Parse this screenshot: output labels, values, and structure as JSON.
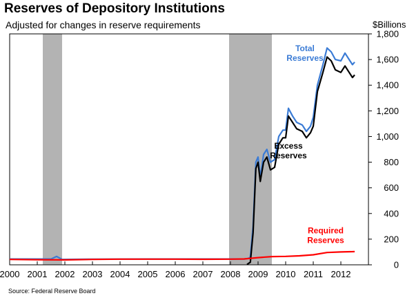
{
  "header": {
    "title": "Reserves of Depository Institutions",
    "subtitle": "Adjusted for changes in reserve requirements",
    "unit_label": "$Billions"
  },
  "footer": {
    "source": "Source:  Federal Reserve Board"
  },
  "chart_data": {
    "type": "line",
    "title": "Reserves of Depository Institutions",
    "subtitle": "Adjusted for changes in reserve requirements",
    "xlabel": "",
    "ylabel": "$Billions",
    "xlim": [
      2000,
      2013
    ],
    "ylim": [
      0,
      1800
    ],
    "x_ticks": [
      2000,
      2001,
      2002,
      2003,
      2004,
      2005,
      2006,
      2007,
      2008,
      2009,
      2010,
      2011,
      2012
    ],
    "x_tick_labels": [
      "2000",
      "2001",
      "2002",
      "2003",
      "2004",
      "2005",
      "2006",
      "2007",
      "2008",
      "2009",
      "2010",
      "2011",
      "2012"
    ],
    "y_ticks": [
      0,
      200,
      400,
      600,
      800,
      1000,
      1200,
      1400,
      1600,
      1800
    ],
    "y_tick_labels": [
      "0",
      "200",
      "400",
      "600",
      "800",
      "1,000",
      "1,200",
      "1,400",
      "1,600",
      "1,800"
    ],
    "grid": false,
    "recessions": [
      {
        "start": 2001.2,
        "end": 2001.9
      },
      {
        "start": 2007.95,
        "end": 2009.5
      }
    ],
    "series": [
      {
        "name": "Total Reserves",
        "label": "Total\nReserves",
        "color": "#3a7bd5",
        "x": [
          2000.0,
          2001.0,
          2001.5,
          2001.7,
          2001.9,
          2003.0,
          2005.0,
          2007.0,
          2008.0,
          2008.5,
          2008.65,
          2008.72,
          2008.82,
          2008.92,
          2009.0,
          2009.08,
          2009.2,
          2009.32,
          2009.45,
          2009.6,
          2009.75,
          2009.9,
          2010.0,
          2010.1,
          2010.25,
          2010.4,
          2010.6,
          2010.75,
          2010.9,
          2011.0,
          2011.15,
          2011.35,
          2011.5,
          2011.65,
          2011.8,
          2012.0,
          2012.15,
          2012.3,
          2012.42,
          2012.5
        ],
        "y": [
          45,
          45,
          45,
          65,
          42,
          44,
          45,
          45,
          45,
          45,
          50,
          60,
          300,
          800,
          840,
          680,
          860,
          900,
          800,
          820,
          1000,
          1050,
          1050,
          1220,
          1160,
          1110,
          1090,
          1040,
          1080,
          1150,
          1400,
          1560,
          1690,
          1660,
          1600,
          1590,
          1650,
          1600,
          1560,
          1580
        ]
      },
      {
        "name": "Excess Reserves",
        "label": "Excess\nReserves",
        "color": "#000000",
        "x": [
          2008.6,
          2008.65,
          2008.72,
          2008.82,
          2008.92,
          2009.0,
          2009.08,
          2009.2,
          2009.32,
          2009.45,
          2009.6,
          2009.75,
          2009.9,
          2010.0,
          2010.1,
          2010.25,
          2010.4,
          2010.6,
          2010.75,
          2010.9,
          2011.0,
          2011.15,
          2011.35,
          2011.5,
          2011.65,
          2011.8,
          2012.0,
          2012.15,
          2012.3,
          2012.42,
          2012.5
        ],
        "y": [
          2,
          10,
          20,
          250,
          750,
          800,
          650,
          800,
          840,
          740,
          760,
          940,
          990,
          990,
          1160,
          1110,
          1060,
          1040,
          990,
          1030,
          1080,
          1350,
          1500,
          1620,
          1590,
          1520,
          1500,
          1550,
          1500,
          1460,
          1480
        ]
      },
      {
        "name": "Required Reserves",
        "label": "Required\nReserves",
        "color": "#ff0000",
        "x": [
          2000.0,
          2001.0,
          2002.0,
          2003.0,
          2004.0,
          2005.0,
          2006.0,
          2007.0,
          2008.0,
          2008.5,
          2009.0,
          2009.5,
          2010.0,
          2010.5,
          2011.0,
          2011.5,
          2012.0,
          2012.5
        ],
        "y": [
          42,
          40,
          38,
          42,
          44,
          44,
          44,
          43,
          44,
          46,
          56,
          64,
          66,
          70,
          78,
          96,
          100,
          103
        ]
      }
    ]
  }
}
